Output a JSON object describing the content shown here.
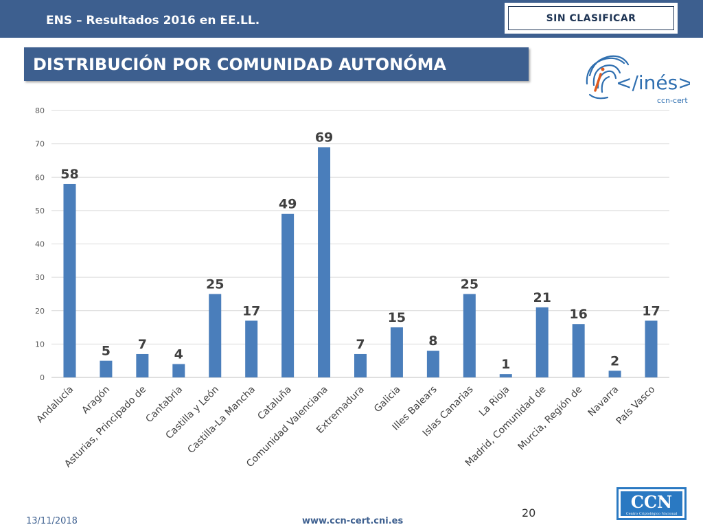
{
  "header": {
    "title": "ENS – Resultados 2016 en EE.LL.",
    "classification": "SIN CLASIFICAR"
  },
  "slide": {
    "heading": "DISTRIBUCIÓN POR COMUNIDAD AUTONÓMA"
  },
  "logo": {
    "ines_text": "</inés>",
    "ccn_cert_text": "ccn-cert",
    "ccn_text": "CCN",
    "ccn_subtext": "Centro Criptológico Nacional"
  },
  "footer": {
    "date": "13/11/2018",
    "url": "www.ccn-cert.cni.es",
    "page": "20"
  },
  "colors": {
    "brand": "#3d5f8f",
    "bar": "#4a7ebb"
  },
  "chart_data": {
    "type": "bar",
    "categories": [
      "Andalucía",
      "Aragón",
      "Asturias, Principado de",
      "Cantabria",
      "Castilla y León",
      "Castilla-La Mancha",
      "Cataluña",
      "Comunidad Valenciana",
      "Extremadura",
      "Galicia",
      "Illes Balears",
      "Islas Canarias",
      "La Rioja",
      "Madrid, Comunidad de",
      "Murcia, Región de",
      "Navarra",
      "País Vasco"
    ],
    "values": [
      58,
      5,
      7,
      4,
      25,
      17,
      49,
      69,
      7,
      15,
      8,
      25,
      1,
      21,
      16,
      2,
      17
    ],
    "yticks": [
      0,
      10,
      20,
      30,
      40,
      50,
      60,
      70,
      80
    ],
    "ylim": [
      0,
      80
    ],
    "grid": true,
    "legend": "none"
  }
}
